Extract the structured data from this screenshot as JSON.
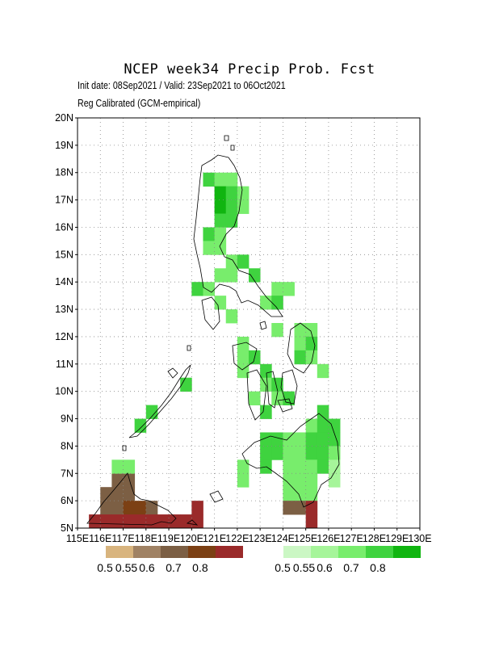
{
  "title": "NCEP week34 Precip Prob. Fcst",
  "subtitle1": "Init date: 08Sep2021 / Valid: 23Sep2021 to 06Oct2021",
  "subtitle2": "Reg Calibrated (GCM-empirical)",
  "axes": {
    "lon_range": [
      115,
      130
    ],
    "lat_range": [
      5,
      20
    ],
    "lat_labels": [
      "5N",
      "6N",
      "7N",
      "8N",
      "9N",
      "10N",
      "11N",
      "12N",
      "13N",
      "14N",
      "15N",
      "16N",
      "17N",
      "18N",
      "19N",
      "20N"
    ],
    "lon_labels": [
      "115E",
      "116E",
      "117E",
      "118E",
      "119E",
      "120E",
      "121E",
      "122E",
      "123E",
      "124E",
      "125E",
      "126E",
      "127E",
      "128E",
      "129E",
      "130E"
    ]
  },
  "legend": {
    "dry_colors": [
      "#d8b47e",
      "#a08264",
      "#7c5f44",
      "#7c4014",
      "#9a2a2a"
    ],
    "wet_colors": [
      "#cbf7c4",
      "#a6f59a",
      "#78ed6c",
      "#3fd33f",
      "#10b510"
    ],
    "labels": [
      "0.5",
      "0.55",
      "0.6",
      "0.7",
      "0.8"
    ]
  },
  "chart_data": {
    "type": "heatmap",
    "cell_size_deg": 0.5,
    "cells": [
      [
        120.5,
        17.5,
        "#3fd33f"
      ],
      [
        121.0,
        17.5,
        "#78ed6c"
      ],
      [
        121.5,
        17.5,
        "#78ed6c"
      ],
      [
        121.0,
        17.0,
        "#10b510"
      ],
      [
        121.5,
        17.0,
        "#3fd33f"
      ],
      [
        122.0,
        17.0,
        "#78ed6c"
      ],
      [
        121.0,
        16.5,
        "#10b510"
      ],
      [
        121.5,
        16.5,
        "#3fd33f"
      ],
      [
        122.0,
        16.5,
        "#78ed6c"
      ],
      [
        121.0,
        16.0,
        "#3fd33f"
      ],
      [
        121.5,
        16.0,
        "#3fd33f"
      ],
      [
        120.5,
        15.5,
        "#3fd33f"
      ],
      [
        121.0,
        15.5,
        "#78ed6c"
      ],
      [
        120.5,
        15.0,
        "#78ed6c"
      ],
      [
        121.0,
        15.0,
        "#78ed6c"
      ],
      [
        121.5,
        14.5,
        "#78ed6c"
      ],
      [
        122.0,
        14.5,
        "#3fd33f"
      ],
      [
        121.0,
        14.0,
        "#78ed6c"
      ],
      [
        121.5,
        14.0,
        "#78ed6c"
      ],
      [
        122.5,
        14.0,
        "#3fd33f"
      ],
      [
        120.0,
        13.5,
        "#3fd33f"
      ],
      [
        120.5,
        13.5,
        "#78ed6c"
      ],
      [
        123.5,
        13.5,
        "#78ed6c"
      ],
      [
        124.0,
        13.5,
        "#78ed6c"
      ],
      [
        121.0,
        13.0,
        "#78ed6c"
      ],
      [
        123.0,
        13.0,
        "#78ed6c"
      ],
      [
        123.5,
        13.0,
        "#3fd33f"
      ],
      [
        121.5,
        12.5,
        "#78ed6c"
      ],
      [
        123.5,
        12.0,
        "#78ed6c"
      ],
      [
        124.5,
        12.0,
        "#78ed6c"
      ],
      [
        125.0,
        12.0,
        "#78ed6c"
      ],
      [
        122.0,
        11.5,
        "#78ed6c"
      ],
      [
        124.5,
        11.5,
        "#78ed6c"
      ],
      [
        125.0,
        11.5,
        "#3fd33f"
      ],
      [
        122.0,
        11.0,
        "#78ed6c"
      ],
      [
        122.5,
        11.0,
        "#3fd33f"
      ],
      [
        124.5,
        11.0,
        "#3fd33f"
      ],
      [
        125.0,
        11.0,
        "#78ed6c"
      ],
      [
        122.0,
        10.5,
        "#78ed6c"
      ],
      [
        123.0,
        10.5,
        "#3fd33f"
      ],
      [
        125.5,
        10.5,
        "#78ed6c"
      ],
      [
        123.0,
        10.0,
        "#78ed6c"
      ],
      [
        123.5,
        10.0,
        "#3fd33f"
      ],
      [
        122.5,
        9.5,
        "#78ed6c"
      ],
      [
        123.5,
        9.5,
        "#78ed6c"
      ],
      [
        124.0,
        9.5,
        "#3fd33f"
      ],
      [
        123.0,
        9.0,
        "#3fd33f"
      ],
      [
        125.5,
        9.0,
        "#3fd33f"
      ],
      [
        125.0,
        8.5,
        "#78ed6c"
      ],
      [
        125.5,
        8.5,
        "#3fd33f"
      ],
      [
        126.0,
        8.5,
        "#3fd33f"
      ],
      [
        123.0,
        8.0,
        "#3fd33f"
      ],
      [
        123.5,
        8.0,
        "#3fd33f"
      ],
      [
        124.0,
        8.0,
        "#78ed6c"
      ],
      [
        124.5,
        8.0,
        "#78ed6c"
      ],
      [
        125.0,
        8.0,
        "#3fd33f"
      ],
      [
        125.5,
        8.0,
        "#3fd33f"
      ],
      [
        126.0,
        8.0,
        "#3fd33f"
      ],
      [
        123.0,
        7.5,
        "#3fd33f"
      ],
      [
        123.5,
        7.5,
        "#3fd33f"
      ],
      [
        124.0,
        7.5,
        "#78ed6c"
      ],
      [
        124.5,
        7.5,
        "#78ed6c"
      ],
      [
        125.0,
        7.5,
        "#3fd33f"
      ],
      [
        125.5,
        7.5,
        "#3fd33f"
      ],
      [
        126.0,
        7.5,
        "#78ed6c"
      ],
      [
        122.0,
        7.0,
        "#78ed6c"
      ],
      [
        123.0,
        7.0,
        "#3fd33f"
      ],
      [
        124.0,
        7.0,
        "#78ed6c"
      ],
      [
        124.5,
        7.0,
        "#78ed6c"
      ],
      [
        125.0,
        7.0,
        "#78ed6c"
      ],
      [
        125.5,
        7.0,
        "#3fd33f"
      ],
      [
        126.0,
        7.0,
        "#a6f59a"
      ],
      [
        122.0,
        6.5,
        "#78ed6c"
      ],
      [
        124.0,
        6.5,
        "#78ed6c"
      ],
      [
        124.5,
        6.5,
        "#78ed6c"
      ],
      [
        125.0,
        6.5,
        "#78ed6c"
      ],
      [
        126.0,
        6.5,
        "#a6f59a"
      ],
      [
        124.0,
        6.0,
        "#78ed6c"
      ],
      [
        124.5,
        6.0,
        "#78ed6c"
      ],
      [
        125.0,
        6.0,
        "#78ed6c"
      ],
      [
        124.0,
        5.5,
        "#7c5f44"
      ],
      [
        124.5,
        5.5,
        "#7c5f44"
      ],
      [
        125.0,
        5.5,
        "#9a2a2a"
      ],
      [
        125.0,
        5.0,
        "#9a2a2a"
      ],
      [
        116.5,
        6.5,
        "#7c5f44"
      ],
      [
        117.0,
        6.5,
        "#7c5f44"
      ],
      [
        116.0,
        6.0,
        "#7c5f44"
      ],
      [
        116.5,
        6.0,
        "#7c5f44"
      ],
      [
        117.0,
        6.0,
        "#7c5f44"
      ],
      [
        116.0,
        5.5,
        "#7c5f44"
      ],
      [
        116.5,
        5.5,
        "#7c5f44"
      ],
      [
        117.0,
        5.5,
        "#7c4014"
      ],
      [
        117.5,
        5.5,
        "#7c4014"
      ],
      [
        118.0,
        5.5,
        "#7c5f44"
      ],
      [
        115.5,
        5.0,
        "#9a2a2a"
      ],
      [
        116.0,
        5.0,
        "#9a2a2a"
      ],
      [
        116.5,
        5.0,
        "#9a2a2a"
      ],
      [
        117.0,
        5.0,
        "#9a2a2a"
      ],
      [
        117.5,
        5.0,
        "#9a2a2a"
      ],
      [
        118.0,
        5.0,
        "#9a2a2a"
      ],
      [
        118.5,
        5.0,
        "#9a2a2a"
      ],
      [
        119.0,
        5.0,
        "#9a2a2a"
      ],
      [
        119.5,
        5.0,
        "#9a2a2a"
      ],
      [
        120.0,
        5.0,
        "#9a2a2a"
      ],
      [
        116.5,
        7.0,
        "#78ed6c"
      ],
      [
        117.0,
        7.0,
        "#78ed6c"
      ],
      [
        117.5,
        8.5,
        "#3fd33f"
      ],
      [
        118.0,
        9.0,
        "#3fd33f"
      ],
      [
        119.5,
        10.0,
        "#3fd33f"
      ],
      [
        120.0,
        5.5,
        "#9a2a2a"
      ]
    ]
  }
}
